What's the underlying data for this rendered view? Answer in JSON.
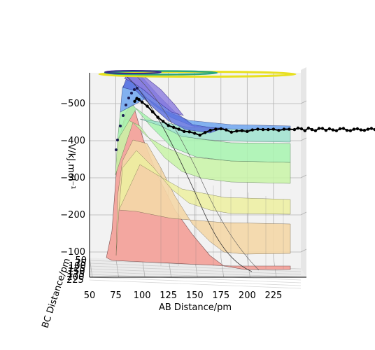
{
  "chart_data": {
    "type": "surface3d",
    "xlabel": "AB Distance/pm",
    "ylabel": "BC Distance/pm",
    "zlabel": "V/kJ.mol⁻¹",
    "x_ticks": [
      "50",
      "75",
      "100",
      "125",
      "150",
      "175",
      "200",
      "225"
    ],
    "y_ticks": [
      "50",
      "75",
      "100",
      "125",
      "150",
      "175",
      "200",
      "225"
    ],
    "z_ticks": [
      "−500",
      "−400",
      "−300",
      "−200",
      "−100"
    ],
    "x_range": [
      50,
      245
    ],
    "z_range": [
      -575,
      -85
    ],
    "grid": true,
    "colormap": "viridis-like filled contours",
    "trajectory_color": "#000000",
    "trajectory": {
      "x": [
        93,
        95,
        97,
        100,
        105,
        110,
        115,
        120,
        125,
        130,
        135,
        140,
        145,
        150,
        155,
        160,
        165,
        170,
        175,
        180,
        185,
        190,
        195,
        200,
        205,
        210,
        215,
        220,
        225,
        230,
        235,
        240,
        245,
        250,
        255,
        260,
        265,
        270,
        275,
        280,
        285,
        290,
        295,
        300,
        305,
        310,
        315,
        320,
        325,
        330,
        335,
        340,
        345,
        350,
        355,
        360,
        365,
        370,
        375,
        380,
        385,
        390,
        395,
        400,
        405,
        410,
        415,
        420,
        425,
        430,
        435,
        440,
        445,
        450,
        455,
        460,
        465,
        470,
        475,
        480,
        485,
        490,
        495,
        500,
        505,
        510,
        515,
        520,
        525,
        530,
        535
      ],
      "z": [
        -506,
        -514,
        -511,
        -504,
        -493,
        -478,
        -463,
        -452,
        -441,
        -436,
        -431,
        -425,
        -424,
        -420,
        -415,
        -422,
        -428,
        -431,
        -432,
        -429,
        -423,
        -426,
        -427,
        -425,
        -429,
        -431,
        -430,
        -430,
        -431,
        -428,
        -431,
        -431,
        -430,
        -434,
        -432,
        -427,
        -434,
        -430,
        -427,
        -433,
        -433,
        -428,
        -432,
        -429,
        -427,
        -432,
        -433,
        -428,
        -427,
        -431,
        -432,
        -429,
        -428,
        -431,
        -433,
        -430,
        -428,
        -432,
        -433,
        -429,
        -427,
        -431,
        -434,
        -431,
        -427,
        -429,
        -433,
        -432,
        -428,
        -426,
        -431,
        -434,
        -430,
        -426,
        -428,
        -433,
        -431,
        -427,
        -428,
        -432,
        -433,
        -429,
        -428,
        -432,
        -432,
        -428,
        -427,
        -431,
        -433,
        -430,
        -428
      ]
    },
    "contour_levels": [
      -100,
      -200,
      -240,
      -280,
      -320,
      -360,
      -400,
      -440
    ]
  }
}
